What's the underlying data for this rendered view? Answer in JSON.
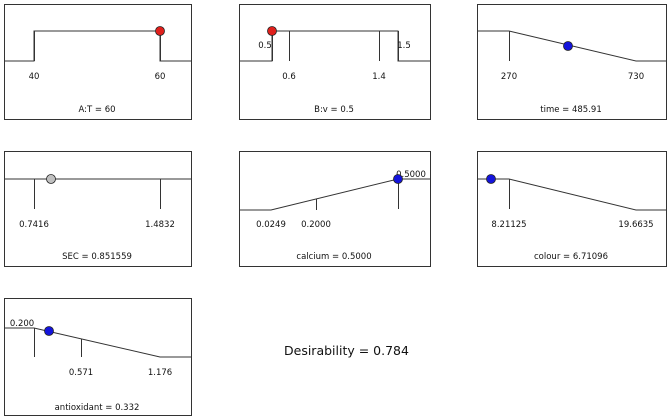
{
  "colors": {
    "red": "#e0201c",
    "blue": "#1414dc",
    "gray": "#c0c0c0",
    "line": "#333333"
  },
  "panels": [
    {
      "caption": "A:T = 60",
      "ticks": [
        {
          "label": "40"
        },
        {
          "label": "60"
        }
      ],
      "marker": {
        "color": "red"
      }
    },
    {
      "caption": "B:v = 0.5",
      "ticks": [
        {
          "label": "0.5"
        },
        {
          "label": "0.6"
        },
        {
          "label": "1.4"
        },
        {
          "label": "1.5"
        }
      ],
      "marker": {
        "color": "red"
      }
    },
    {
      "caption": "time = 485.91",
      "ticks": [
        {
          "label": "270"
        },
        {
          "label": "730"
        }
      ],
      "marker": {
        "color": "blue"
      }
    },
    {
      "caption": "SEC = 0.851559",
      "ticks": [
        {
          "label": "0.7416"
        },
        {
          "label": "1.4832"
        }
      ],
      "marker": {
        "color": "gray"
      }
    },
    {
      "caption": "calcium = 0.5000",
      "ticks": [
        {
          "label": "0.0249"
        },
        {
          "label": "0.2000"
        },
        {
          "label": "0.5000"
        }
      ],
      "marker": {
        "color": "blue"
      }
    },
    {
      "caption": "colour = 6.71096",
      "ticks": [
        {
          "label": "8.21125"
        },
        {
          "label": "19.6635"
        }
      ],
      "marker": {
        "color": "blue"
      }
    },
    {
      "caption": "antioxidant = 0.332",
      "ticks": [
        {
          "label": "0.200"
        },
        {
          "label": "0.571"
        },
        {
          "label": "1.176"
        }
      ],
      "marker": {
        "color": "blue"
      }
    }
  ],
  "desirability": "Desirability = 0.784"
}
